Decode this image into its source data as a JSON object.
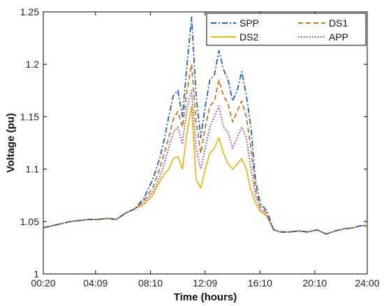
{
  "chart_data": {
    "type": "line",
    "xlabel": "Time (hours)",
    "ylabel": "Voltage (pu)",
    "x_tick_labels": [
      "00:20",
      "04:09",
      "08:10",
      "12:09",
      "16:10",
      "20:10",
      "24:00"
    ],
    "y_ticks": [
      1,
      1.05,
      1.1,
      1.15,
      1.2,
      1.25
    ],
    "y_tick_labels": [
      "1",
      "1.05",
      "1.1",
      "1.15",
      "1.2",
      "1.25"
    ],
    "ylim": [
      1,
      1.25
    ],
    "grid": false,
    "legend_position": "top-right",
    "x": [
      "00:20",
      "01:00",
      "01:40",
      "02:20",
      "03:00",
      "03:40",
      "04:20",
      "05:00",
      "05:40",
      "06:20",
      "07:00",
      "07:40",
      "08:20",
      "08:50",
      "09:10",
      "09:30",
      "09:50",
      "10:10",
      "10:30",
      "10:50",
      "11:10",
      "11:30",
      "11:50",
      "12:10",
      "12:30",
      "12:50",
      "13:10",
      "13:30",
      "13:50",
      "14:10",
      "14:30",
      "14:50",
      "15:10",
      "15:30",
      "15:50",
      "16:10",
      "16:40",
      "17:10",
      "17:40",
      "18:20",
      "19:00",
      "19:40",
      "20:20",
      "21:00",
      "21:40",
      "22:20",
      "23:00",
      "23:30",
      "24:00"
    ],
    "series": [
      {
        "name": "SPP",
        "color": "#1f5fbf",
        "dash": "dashdot",
        "values": [
          1.044,
          1.046,
          1.048,
          1.05,
          1.051,
          1.052,
          1.052,
          1.053,
          1.052,
          1.058,
          1.062,
          1.072,
          1.09,
          1.11,
          1.128,
          1.15,
          1.17,
          1.175,
          1.15,
          1.2,
          1.245,
          1.17,
          1.13,
          1.16,
          1.185,
          1.19,
          1.213,
          1.195,
          1.185,
          1.165,
          1.175,
          1.193,
          1.17,
          1.14,
          1.09,
          1.068,
          1.06,
          1.042,
          1.04,
          1.04,
          1.041,
          1.04,
          1.042,
          1.038,
          1.041,
          1.043,
          1.044,
          1.046,
          1.046
        ]
      },
      {
        "name": "DS1",
        "color": "#c07820",
        "dash": "dashed",
        "values": [
          1.044,
          1.046,
          1.048,
          1.05,
          1.051,
          1.052,
          1.052,
          1.053,
          1.052,
          1.058,
          1.062,
          1.07,
          1.082,
          1.1,
          1.115,
          1.13,
          1.148,
          1.155,
          1.14,
          1.175,
          1.2,
          1.145,
          1.115,
          1.14,
          1.16,
          1.165,
          1.185,
          1.17,
          1.162,
          1.145,
          1.155,
          1.165,
          1.15,
          1.12,
          1.082,
          1.065,
          1.058,
          1.042,
          1.04,
          1.04,
          1.041,
          1.04,
          1.042,
          1.038,
          1.041,
          1.043,
          1.044,
          1.046,
          1.046
        ]
      },
      {
        "name": "DS2",
        "color": "#e8b820",
        "dash": "solid",
        "values": [
          1.044,
          1.046,
          1.048,
          1.05,
          1.051,
          1.052,
          1.052,
          1.053,
          1.052,
          1.058,
          1.062,
          1.066,
          1.075,
          1.088,
          1.095,
          1.1,
          1.11,
          1.112,
          1.1,
          1.135,
          1.16,
          1.09,
          1.082,
          1.1,
          1.115,
          1.12,
          1.13,
          1.115,
          1.105,
          1.1,
          1.105,
          1.11,
          1.1,
          1.08,
          1.068,
          1.06,
          1.055,
          1.042,
          1.04,
          1.04,
          1.041,
          1.04,
          1.042,
          1.038,
          1.041,
          1.043,
          1.044,
          1.046,
          1.046
        ]
      },
      {
        "name": "APP",
        "color": "#8b2a8b",
        "dash": "dotted",
        "values": [
          1.044,
          1.046,
          1.048,
          1.05,
          1.051,
          1.052,
          1.052,
          1.053,
          1.052,
          1.058,
          1.062,
          1.068,
          1.078,
          1.092,
          1.105,
          1.12,
          1.135,
          1.14,
          1.125,
          1.158,
          1.175,
          1.12,
          1.1,
          1.12,
          1.14,
          1.15,
          1.16,
          1.14,
          1.135,
          1.12,
          1.13,
          1.14,
          1.13,
          1.1,
          1.075,
          1.062,
          1.056,
          1.042,
          1.04,
          1.04,
          1.041,
          1.04,
          1.042,
          1.038,
          1.041,
          1.043,
          1.044,
          1.046,
          1.046
        ]
      }
    ]
  }
}
